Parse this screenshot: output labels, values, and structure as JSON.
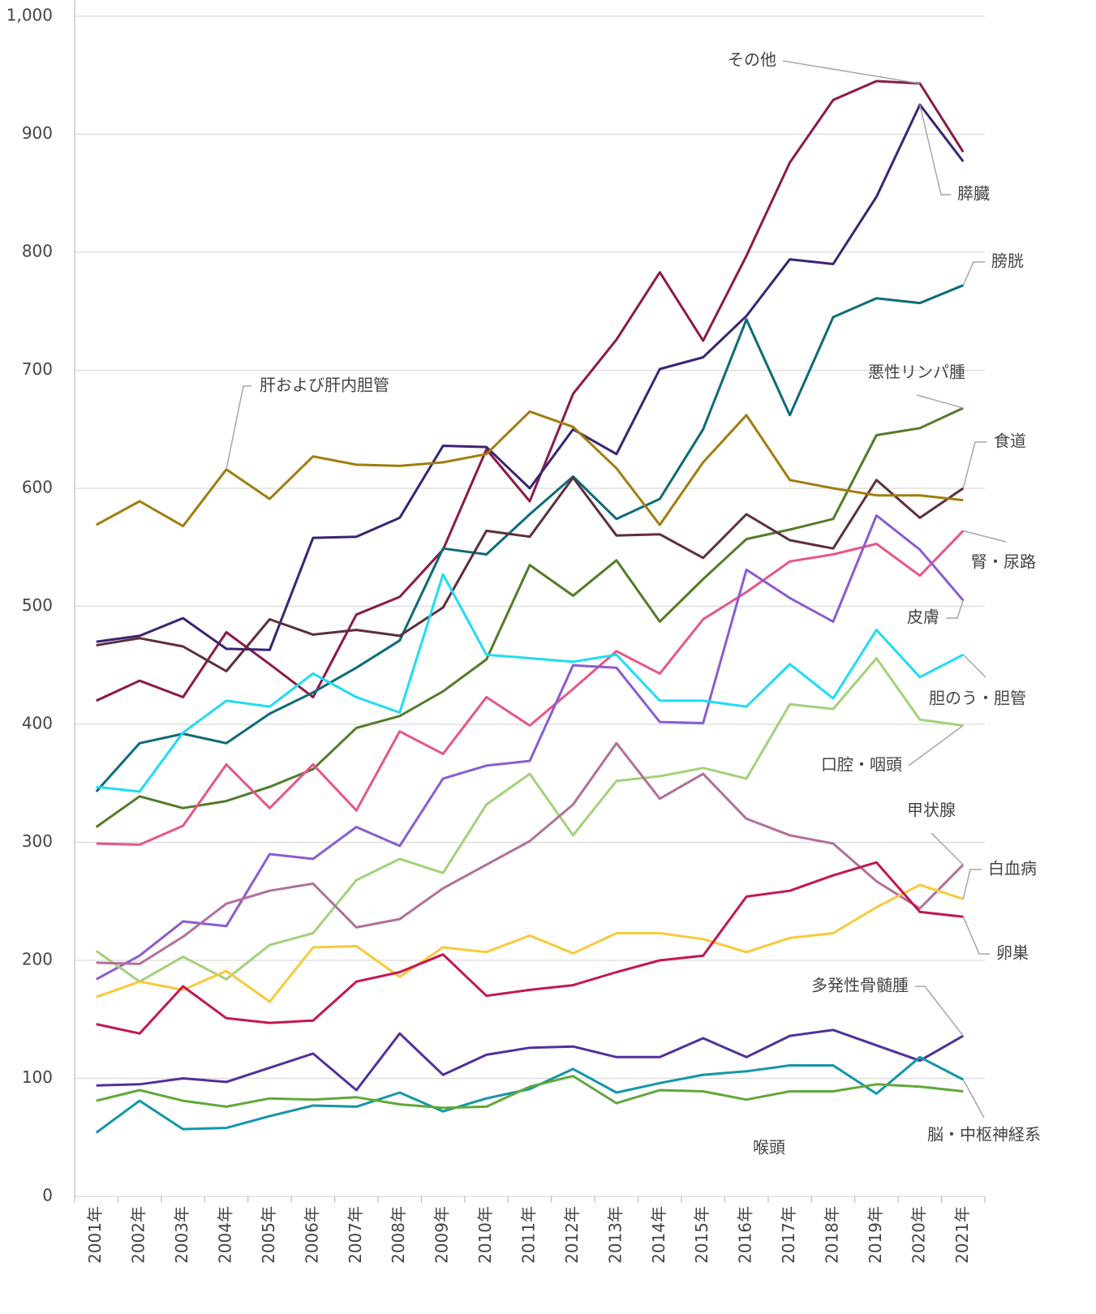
{
  "chart_data": {
    "type": "line",
    "categories": [
      "2001年",
      "2002年",
      "2003年",
      "2004年",
      "2005年",
      "2006年",
      "2007年",
      "2008年",
      "2009年",
      "2010年",
      "2011年",
      "2012年",
      "2013年",
      "2014年",
      "2015年",
      "2016年",
      "2017年",
      "2018年",
      "2019年",
      "2020年",
      "2021年"
    ],
    "ylim": [
      0,
      1000
    ],
    "yticks": [
      0,
      100,
      200,
      300,
      400,
      500,
      600,
      700,
      800,
      900,
      {
        "value": 1000,
        "label": "1,000"
      }
    ],
    "grid": true,
    "series": [
      {
        "name": "その他",
        "color": "#8b1a4a",
        "values": [
          420,
          437,
          423,
          478,
          451,
          423,
          493,
          508,
          548,
          633,
          589,
          680,
          726,
          783,
          725,
          797,
          876,
          929,
          945,
          943,
          885
        ]
      },
      {
        "name": "膵臓",
        "color": "#3b2472",
        "values": [
          470,
          475,
          490,
          464,
          463,
          558,
          559,
          575,
          636,
          635,
          600,
          650,
          629,
          701,
          711,
          746,
          794,
          790,
          847,
          925,
          877
        ]
      },
      {
        "name": "膀胱",
        "color": "#0e6b78",
        "values": [
          343,
          384,
          392,
          384,
          409,
          427,
          448,
          471,
          549,
          544,
          578,
          610,
          574,
          591,
          650,
          743,
          662,
          745,
          761,
          757,
          772
        ]
      },
      {
        "name": "悪性リンパ腫",
        "color": "#557a2a",
        "values": [
          313,
          339,
          329,
          335,
          347,
          362,
          397,
          407,
          428,
          455,
          535,
          509,
          539,
          487,
          523,
          557,
          565,
          574,
          645,
          651,
          668
        ]
      },
      {
        "name": "食道",
        "color": "#5e2f3c",
        "values": [
          467,
          473,
          466,
          445,
          489,
          476,
          480,
          475,
          499,
          564,
          559,
          609,
          560,
          561,
          541,
          578,
          556,
          549,
          607,
          575,
          600
        ]
      },
      {
        "name": "肝および肝内胆管",
        "color": "#a07d10",
        "values": [
          569,
          589,
          568,
          616,
          591,
          627,
          620,
          619,
          622,
          629,
          665,
          652,
          617,
          569,
          622,
          662,
          607,
          600,
          594,
          594,
          590
        ]
      },
      {
        "name": "腎・尿路",
        "color": "#e8548a",
        "values": [
          299,
          298,
          314,
          366,
          329,
          366,
          327,
          394,
          375,
          423,
          399,
          430,
          462,
          443,
          489,
          512,
          538,
          544,
          553,
          526,
          564
        ]
      },
      {
        "name": "皮膚",
        "color": "#8a5cd0",
        "values": [
          184,
          204,
          233,
          229,
          290,
          286,
          313,
          297,
          354,
          365,
          369,
          450,
          448,
          402,
          401,
          531,
          507,
          487,
          577,
          548,
          505
        ]
      },
      {
        "name": "胆のう・胆管",
        "color": "#1fdcf5",
        "values": [
          347,
          343,
          393,
          420,
          415,
          443,
          423,
          410,
          527,
          459,
          456,
          453,
          459,
          420,
          420,
          415,
          451,
          422,
          480,
          440,
          459
        ]
      },
      {
        "name": "口腔・咽頭",
        "color": "#a3d17a",
        "values": [
          208,
          182,
          203,
          184,
          213,
          223,
          268,
          286,
          274,
          332,
          358,
          306,
          352,
          356,
          363,
          354,
          417,
          413,
          456,
          404,
          399
        ]
      },
      {
        "name": "甲状腺",
        "color": "#b0709a",
        "values": [
          198,
          197,
          220,
          248,
          259,
          265,
          228,
          235,
          261,
          281,
          301,
          332,
          384,
          337,
          358,
          320,
          306,
          299,
          267,
          244,
          281
        ]
      },
      {
        "name": "白血病",
        "color": "#f8c93c",
        "values": [
          169,
          182,
          175,
          191,
          165,
          211,
          212,
          186,
          211,
          207,
          221,
          206,
          223,
          223,
          218,
          207,
          219,
          223,
          245,
          264,
          252
        ]
      },
      {
        "name": "卵巣",
        "color": "#c41652",
        "values": [
          146,
          138,
          178,
          151,
          147,
          149,
          182,
          190,
          205,
          170,
          175,
          179,
          190,
          200,
          204,
          254,
          259,
          272,
          283,
          241,
          237
        ]
      },
      {
        "name": "多発性骨髄腫",
        "color": "#52309a",
        "values": [
          94,
          95,
          100,
          97,
          109,
          121,
          90,
          138,
          103,
          120,
          126,
          127,
          118,
          118,
          134,
          118,
          136,
          141,
          128,
          115,
          136
        ]
      },
      {
        "name": "脳・中枢神経系",
        "color": "#1496a8",
        "values": [
          54,
          81,
          57,
          58,
          68,
          77,
          76,
          88,
          72,
          83,
          91,
          108,
          88,
          96,
          103,
          106,
          111,
          111,
          87,
          118,
          99
        ]
      },
      {
        "name": "喉頭",
        "color": "#60a83a",
        "values": [
          81,
          90,
          81,
          76,
          83,
          82,
          84,
          78,
          75,
          76,
          93,
          102,
          79,
          90,
          89,
          82,
          89,
          89,
          95,
          93,
          89
        ]
      }
    ]
  }
}
